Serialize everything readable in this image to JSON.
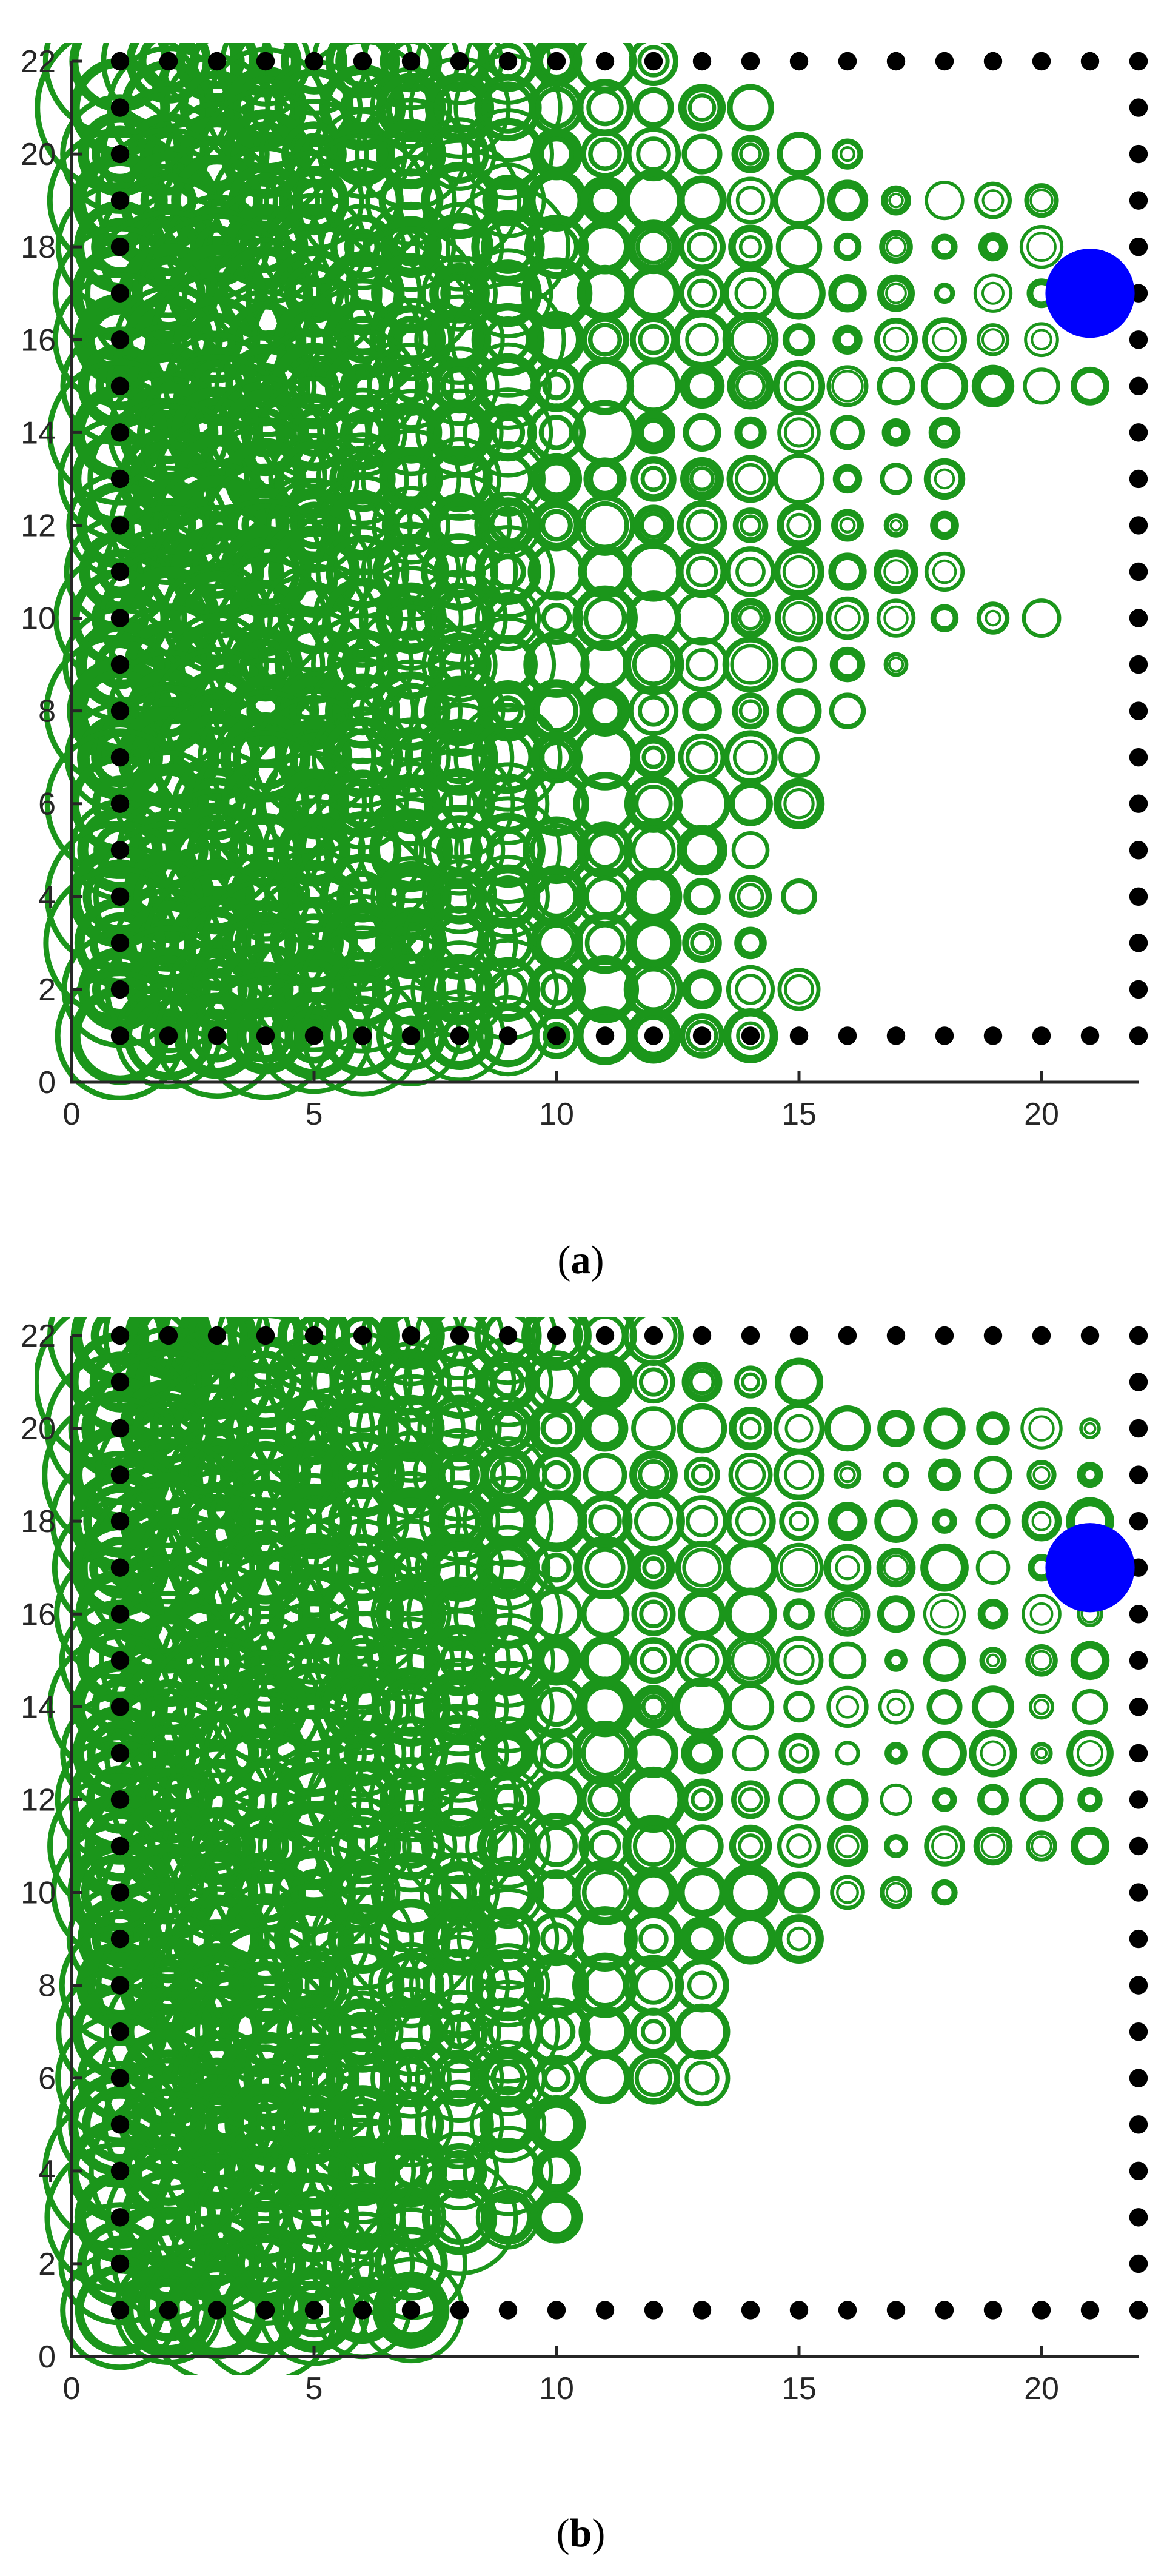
{
  "colors": {
    "circle_green": "#1b961b",
    "wall_black": "#000000",
    "goal_blue": "#0000ff",
    "axis": "#262626"
  },
  "chart_data": [
    {
      "type": "scatter",
      "caption": "(a)",
      "caption_paren_open": "(",
      "caption_letter": "a",
      "caption_paren_close": ")",
      "xlim": [
        0,
        22
      ],
      "ylim": [
        0,
        22
      ],
      "xticks": [
        0,
        5,
        10,
        15,
        20
      ],
      "yticks": [
        0,
        2,
        4,
        6,
        8,
        10,
        12,
        14,
        16,
        18,
        20,
        22
      ],
      "grid": false,
      "goal": {
        "x": 21,
        "y": 17
      },
      "wall": "boundary x=1, x=22, y=1, y=22 (x 1..22, y 1..22)",
      "explored_rows": [
        {
          "y": 22,
          "x_max": 12,
          "wall_from": 13
        },
        {
          "y": 21,
          "x_max": 14
        },
        {
          "y": 20,
          "x_max": 16
        },
        {
          "y": 19,
          "x_max": 20
        },
        {
          "y": 18,
          "x_max": 20
        },
        {
          "y": 17,
          "x_max": 20
        },
        {
          "y": 16,
          "x_max": 20
        },
        {
          "y": 15,
          "x_max": 21
        },
        {
          "y": 14,
          "x_max": 18
        },
        {
          "y": 13,
          "x_max": 18
        },
        {
          "y": 12,
          "x_max": 18
        },
        {
          "y": 11,
          "x_max": 18
        },
        {
          "y": 10,
          "x_max": 20
        },
        {
          "y": 9,
          "x_max": 17
        },
        {
          "y": 8,
          "x_max": 16
        },
        {
          "y": 7,
          "x_max": 15
        },
        {
          "y": 6,
          "x_max": 15
        },
        {
          "y": 5,
          "x_max": 14
        },
        {
          "y": 4,
          "x_max": 15
        },
        {
          "y": 3,
          "x_max": 14
        },
        {
          "y": 2,
          "x_max": 15
        },
        {
          "y": 1,
          "x_max": 14,
          "wall_from": 15
        }
      ]
    },
    {
      "type": "scatter",
      "caption": "(b)",
      "caption_paren_open": "(",
      "caption_letter": "b",
      "caption_paren_close": ")",
      "xlim": [
        0,
        22
      ],
      "ylim": [
        0,
        22
      ],
      "xticks": [
        0,
        5,
        10,
        15,
        20
      ],
      "yticks": [
        0,
        2,
        4,
        6,
        8,
        10,
        12,
        14,
        16,
        18,
        20,
        22
      ],
      "grid": false,
      "goal": {
        "x": 21,
        "y": 17
      },
      "wall": "boundary x=1, x=22, y=1, y=22 (x 1..22, y 1..22)",
      "explored_rows": [
        {
          "y": 22,
          "x_max": 12,
          "wall_from": 13
        },
        {
          "y": 21,
          "x_max": 15
        },
        {
          "y": 20,
          "x_max": 21
        },
        {
          "y": 19,
          "x_max": 21
        },
        {
          "y": 18,
          "x_max": 21
        },
        {
          "y": 17,
          "x_max": 20
        },
        {
          "y": 16,
          "x_max": 21
        },
        {
          "y": 15,
          "x_max": 21
        },
        {
          "y": 14,
          "x_max": 21
        },
        {
          "y": 13,
          "x_max": 21
        },
        {
          "y": 12,
          "x_max": 21
        },
        {
          "y": 11,
          "x_max": 21
        },
        {
          "y": 10,
          "x_max": 18
        },
        {
          "y": 9,
          "x_max": 15
        },
        {
          "y": 8,
          "x_max": 13
        },
        {
          "y": 7,
          "x_max": 13
        },
        {
          "y": 6,
          "x_max": 13
        },
        {
          "y": 5,
          "x_max": 10
        },
        {
          "y": 4,
          "x_max": 10
        },
        {
          "y": 3,
          "x_max": 10
        },
        {
          "y": 2,
          "x_max": 7
        },
        {
          "y": 1,
          "x_max": 7,
          "wall_from": 8
        }
      ]
    }
  ]
}
